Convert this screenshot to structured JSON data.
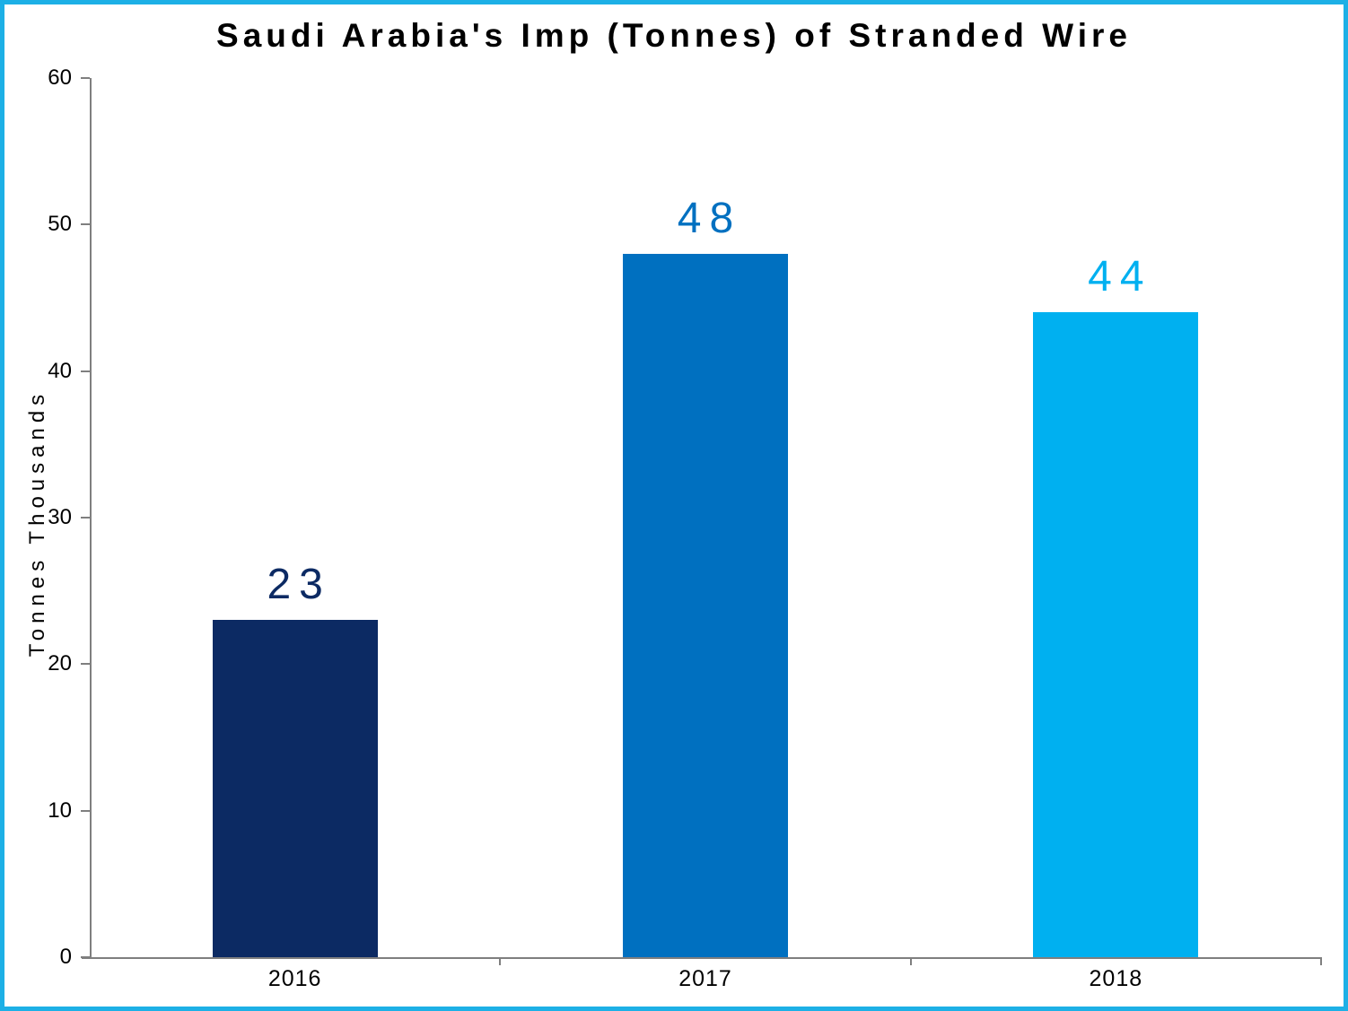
{
  "chart_data": {
    "type": "bar",
    "title": "Saudi Arabia's Imp (Tonnes) of Stranded Wire",
    "xlabel": "",
    "ylabel": "Tonnes Thousands",
    "categories": [
      "2016",
      "2017",
      "2018"
    ],
    "values": [
      23,
      48,
      44
    ],
    "bar_colors": [
      "#0c2a63",
      "#0070c0",
      "#00b0f0"
    ],
    "value_label_colors": [
      "#0c2a63",
      "#0070c0",
      "#00b0f0"
    ],
    "ylim": [
      0,
      60
    ],
    "ytick_step": 10,
    "yticks": [
      0,
      10,
      20,
      30,
      40,
      50,
      60
    ],
    "grid": false,
    "legend": false
  },
  "styles": {
    "page_border_color": "#1db0e6",
    "axis_color": "#7f7f7f",
    "background_color": "#ffffff",
    "title_color": "#000000",
    "tick_label_color": "#000000"
  }
}
